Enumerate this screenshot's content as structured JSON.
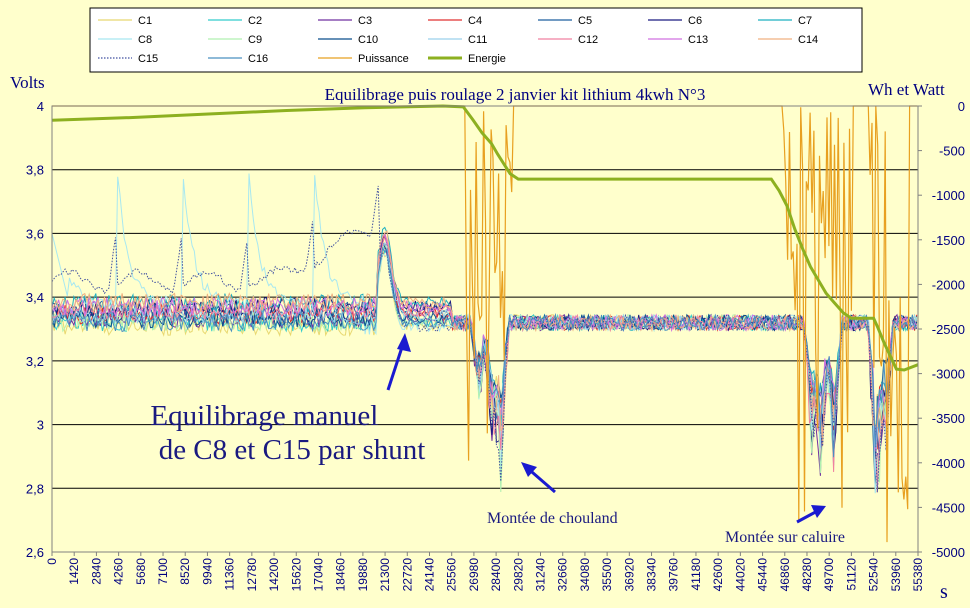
{
  "chart_data": {
    "type": "line",
    "title": "Equilibrage puis roulage 2 janvier kit lithium 4kwh  N°3",
    "ylabel_left": "Volts",
    "ylabel_right": "Wh et Watt",
    "xlabel": "s",
    "ylim_left": [
      2.6,
      4.0
    ],
    "ylim_right": [
      -5000,
      0
    ],
    "xlim": [
      0,
      55380
    ],
    "grid": true,
    "legend_position": "top",
    "y_ticks_left": [
      "4",
      "3,8",
      "3,6",
      "3,4",
      "3,2",
      "3",
      "2,8",
      "2,6"
    ],
    "y_ticks_right": [
      "0",
      "-500",
      "-1000",
      "-1500",
      "-2000",
      "-2500",
      "-3000",
      "-3500",
      "-4000",
      "-4500",
      "-5000"
    ],
    "x_ticks": [
      "0",
      "1420",
      "2840",
      "4260",
      "5680",
      "7100",
      "8520",
      "9940",
      "11360",
      "12780",
      "14200",
      "15620",
      "17040",
      "18460",
      "19880",
      "21300",
      "22720",
      "24140",
      "25560",
      "26980",
      "28400",
      "29820",
      "31240",
      "32660",
      "34080",
      "35500",
      "36920",
      "38340",
      "39760",
      "41180",
      "42600",
      "44020",
      "45440",
      "46860",
      "48280",
      "49700",
      "51120",
      "52540",
      "53960",
      "55380"
    ],
    "legend": [
      {
        "name": "C1",
        "color": "#e8d870",
        "style": "solid"
      },
      {
        "name": "C2",
        "color": "#33cccc",
        "style": "solid"
      },
      {
        "name": "C3",
        "color": "#7030a0",
        "style": "solid"
      },
      {
        "name": "C4",
        "color": "#e03030",
        "style": "solid"
      },
      {
        "name": "C5",
        "color": "#1f5f9f",
        "style": "solid"
      },
      {
        "name": "C6",
        "color": "#1a1a80",
        "style": "solid"
      },
      {
        "name": "C7",
        "color": "#1fb0c0",
        "style": "solid"
      },
      {
        "name": "C8",
        "color": "#a8e8f0",
        "style": "solid"
      },
      {
        "name": "C9",
        "color": "#b0f0b0",
        "style": "solid"
      },
      {
        "name": "C10",
        "color": "#0a4d8c",
        "style": "solid"
      },
      {
        "name": "C11",
        "color": "#9ad0ec",
        "style": "solid"
      },
      {
        "name": "C12",
        "color": "#f080a0",
        "style": "solid"
      },
      {
        "name": "C13",
        "color": "#d070e0",
        "style": "solid"
      },
      {
        "name": "C14",
        "color": "#f0b080",
        "style": "solid"
      },
      {
        "name": "C15",
        "color": "#4050a0",
        "style": "dotted"
      },
      {
        "name": "C16",
        "color": "#4a90c0",
        "style": "solid"
      },
      {
        "name": "Puissance",
        "color": "#e8a020",
        "style": "solid"
      },
      {
        "name": "Energie",
        "color": "#8db020",
        "style": "thick"
      }
    ],
    "energy_series": {
      "name": "Energie",
      "axis": "right",
      "x": [
        0,
        5000,
        10000,
        15000,
        20000,
        25000,
        26300,
        26900,
        27500,
        28100,
        28500,
        28900,
        29300,
        29820,
        35000,
        40000,
        46000,
        46500,
        47000,
        47500,
        48000,
        48500,
        49000,
        49500,
        50000,
        50600,
        51120,
        52000,
        52540,
        52800,
        53200,
        53600,
        54000,
        54500,
        55380
      ],
      "y": [
        -160,
        -130,
        -90,
        -50,
        -20,
        0,
        -10,
        -150,
        -300,
        -420,
        -540,
        -650,
        -760,
        -820,
        -820,
        -820,
        -820,
        -950,
        -1120,
        -1380,
        -1600,
        -1800,
        -1950,
        -2100,
        -2200,
        -2320,
        -2380,
        -2380,
        -2380,
        -2480,
        -2650,
        -2800,
        -2950,
        -2960,
        -2900
      ]
    },
    "voltage_series_summary": {
      "rest_phase_range": [
        3.28,
        3.45
      ],
      "balancing_peak_voltage": 3.8,
      "drive_min_voltage": 2.72
    },
    "annotations": [
      {
        "text": "Equilibrage manuel\n de C8 et C15 par shunt",
        "x": 21300,
        "y": 3.25
      },
      {
        "text": "Montée de chouland",
        "x": 28400,
        "y": 2.82
      },
      {
        "text": "Montée sur caluire",
        "x": 50500,
        "y": 2.75
      }
    ]
  }
}
